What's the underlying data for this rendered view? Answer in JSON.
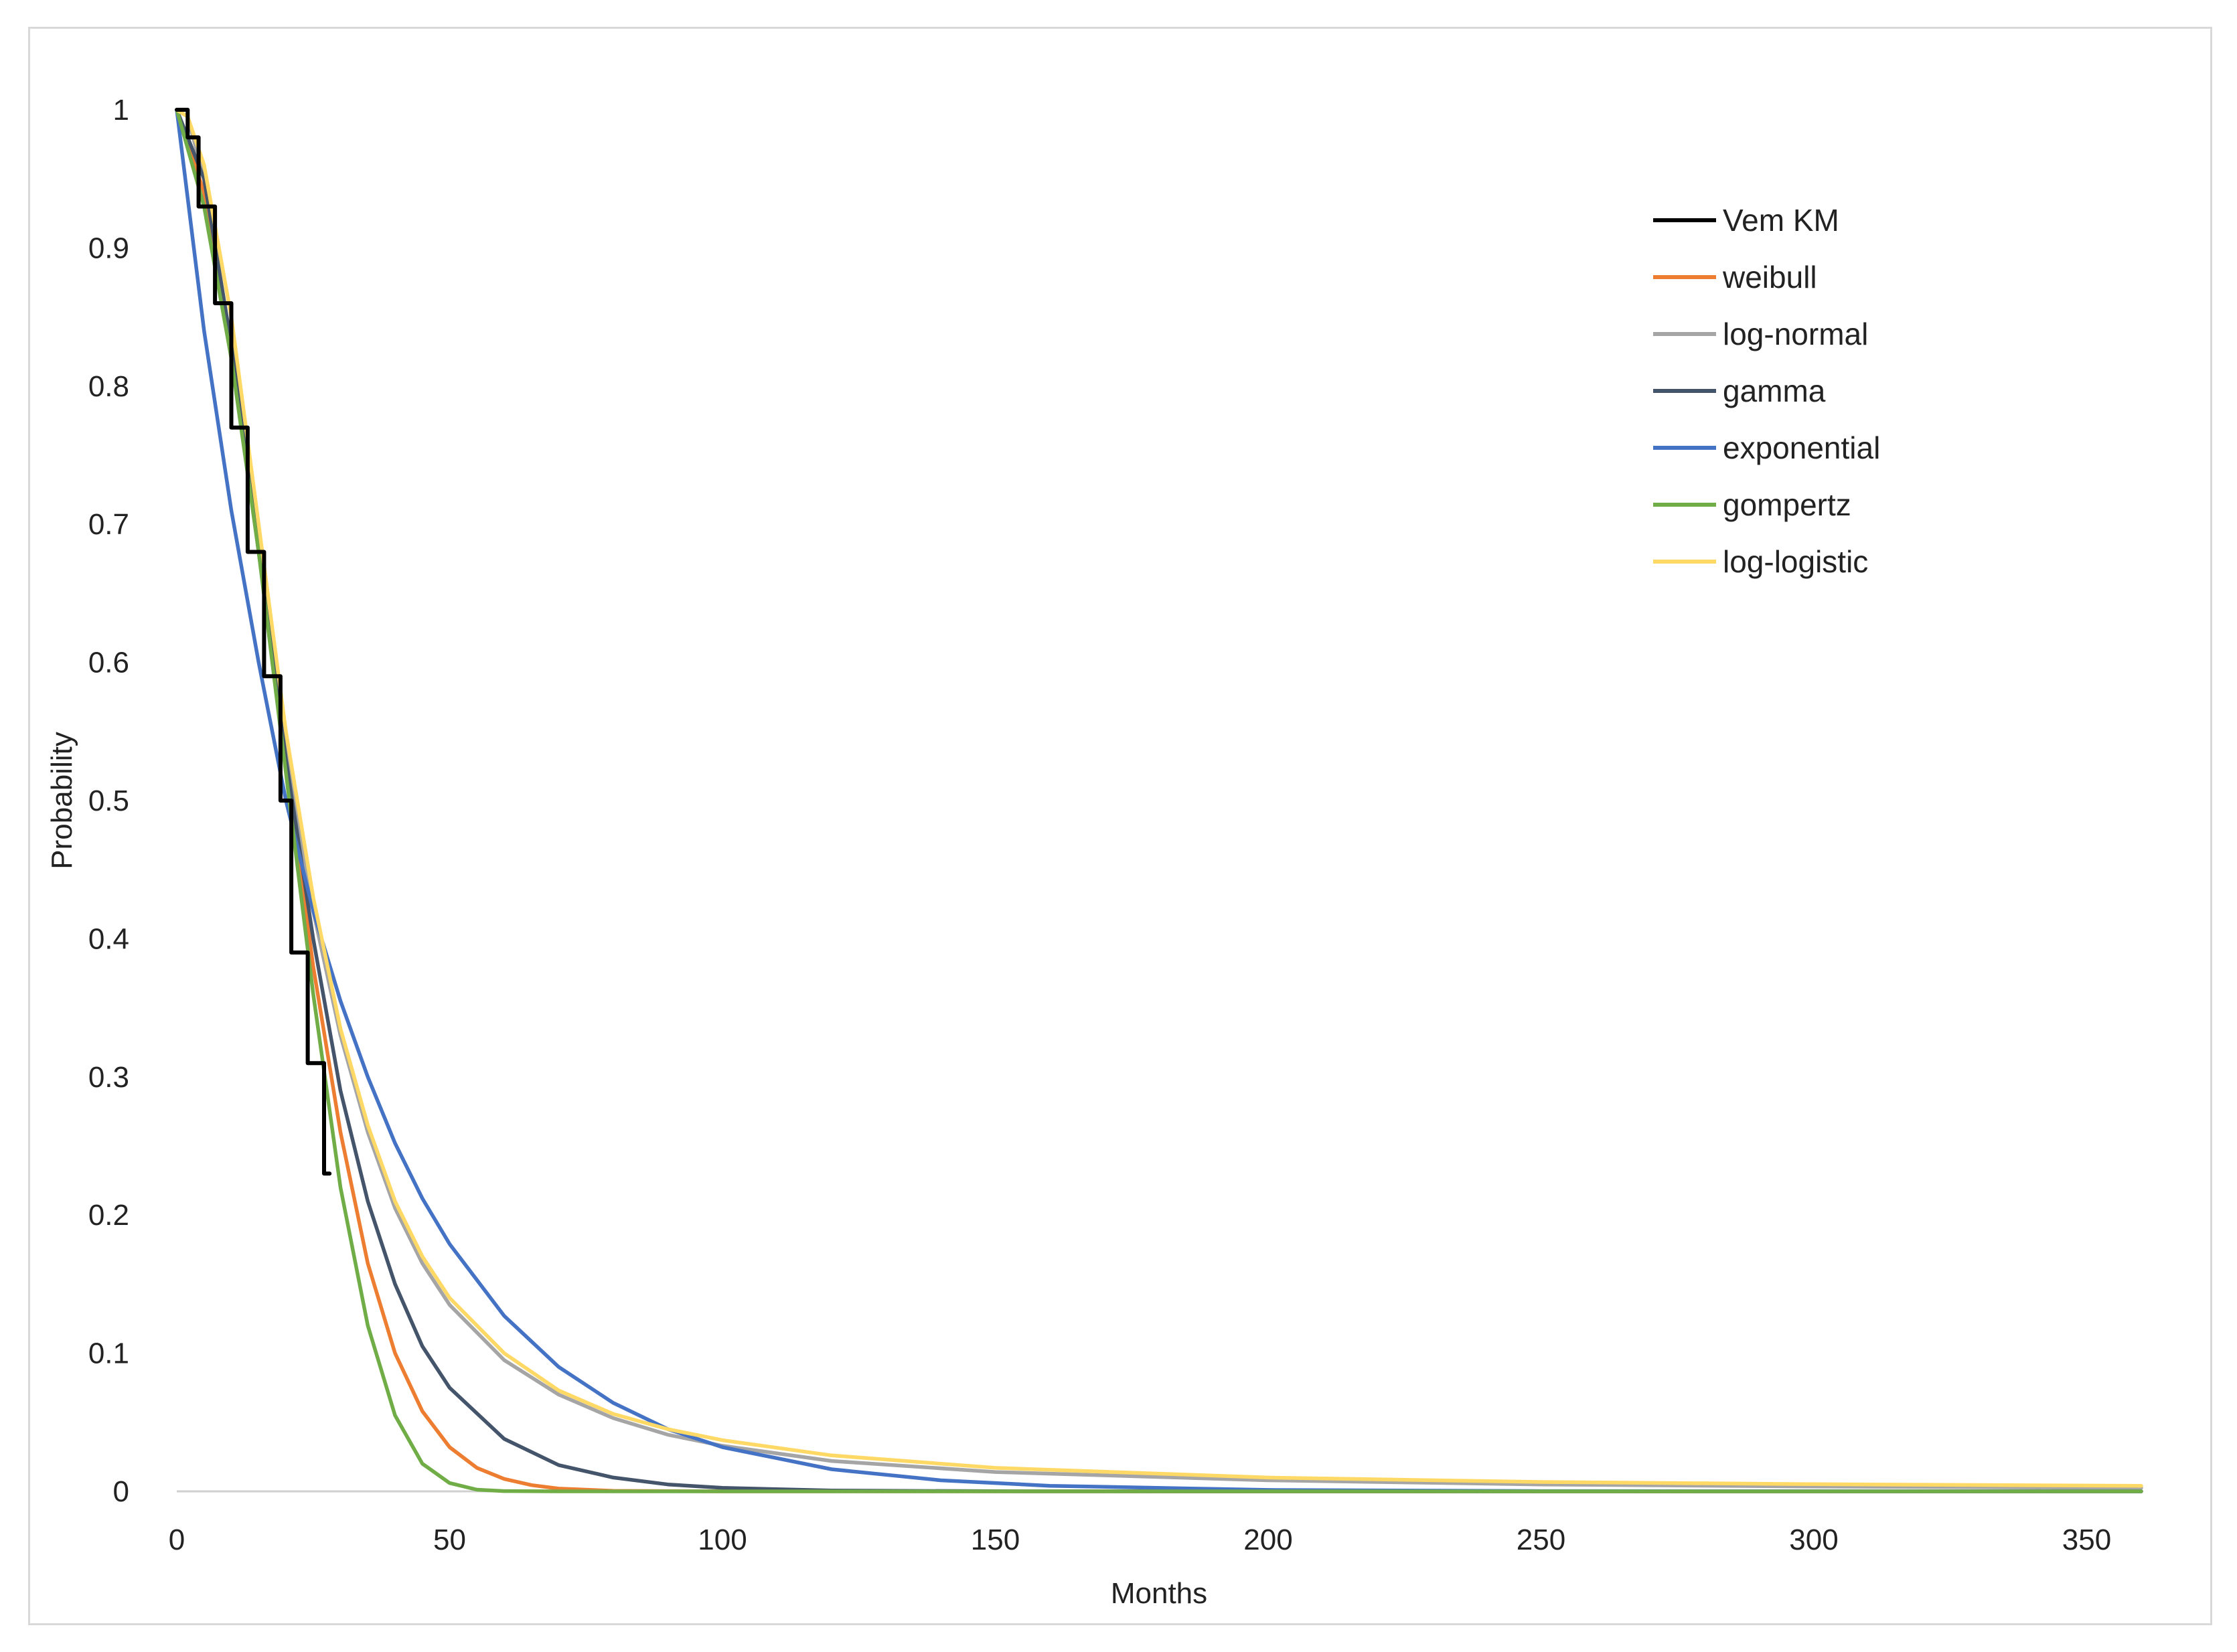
{
  "chart_data": {
    "type": "line",
    "title": "",
    "xlabel": "Months",
    "ylabel": "Probability",
    "xlim": [
      0,
      360
    ],
    "ylim": [
      0,
      1
    ],
    "xticks": [
      "0",
      "50",
      "100",
      "150",
      "200",
      "250",
      "300",
      "350"
    ],
    "yticks": [
      "0",
      "0.1",
      "0.2",
      "0.3",
      "0.4",
      "0.5",
      "0.6",
      "0.7",
      "0.8",
      "0.9",
      "1"
    ],
    "grid": false,
    "legend_position": "top-right",
    "series": [
      {
        "name": "Vem KM",
        "color": "#000000",
        "step": true,
        "points": [
          [
            0,
            1
          ],
          [
            2,
            1
          ],
          [
            2,
            0.98
          ],
          [
            4,
            0.98
          ],
          [
            4,
            0.93
          ],
          [
            7,
            0.93
          ],
          [
            7,
            0.86
          ],
          [
            10,
            0.86
          ],
          [
            10,
            0.77
          ],
          [
            13,
            0.77
          ],
          [
            13,
            0.68
          ],
          [
            16,
            0.68
          ],
          [
            16,
            0.59
          ],
          [
            19,
            0.59
          ],
          [
            19,
            0.5
          ],
          [
            21,
            0.5
          ],
          [
            21,
            0.39
          ],
          [
            24,
            0.39
          ],
          [
            24,
            0.31
          ],
          [
            27,
            0.31
          ],
          [
            27,
            0.23
          ],
          [
            28,
            0.23
          ]
        ]
      },
      {
        "name": "weibull",
        "color": "#ed7d31",
        "points": [
          [
            0,
            1
          ],
          [
            5,
            0.94
          ],
          [
            10,
            0.83
          ],
          [
            15,
            0.69
          ],
          [
            20,
            0.53
          ],
          [
            25,
            0.38
          ],
          [
            30,
            0.26
          ],
          [
            35,
            0.165
          ],
          [
            40,
            0.1
          ],
          [
            45,
            0.058
          ],
          [
            50,
            0.032
          ],
          [
            55,
            0.017
          ],
          [
            60,
            0.009
          ],
          [
            65,
            0.0045
          ],
          [
            70,
            0.002
          ],
          [
            80,
            0.0004
          ],
          [
            100,
            0
          ],
          [
            360,
            0
          ]
        ]
      },
      {
        "name": "log-normal",
        "color": "#a5a5a5",
        "points": [
          [
            0,
            1
          ],
          [
            2,
            0.995
          ],
          [
            5,
            0.95
          ],
          [
            10,
            0.83
          ],
          [
            15,
            0.68
          ],
          [
            20,
            0.54
          ],
          [
            25,
            0.42
          ],
          [
            30,
            0.33
          ],
          [
            35,
            0.26
          ],
          [
            40,
            0.205
          ],
          [
            45,
            0.165
          ],
          [
            50,
            0.135
          ],
          [
            60,
            0.095
          ],
          [
            70,
            0.07
          ],
          [
            80,
            0.053
          ],
          [
            90,
            0.041
          ],
          [
            100,
            0.033
          ],
          [
            120,
            0.022
          ],
          [
            150,
            0.014
          ],
          [
            200,
            0.008
          ],
          [
            250,
            0.005
          ],
          [
            300,
            0.0035
          ],
          [
            360,
            0.0025
          ]
        ]
      },
      {
        "name": "gamma",
        "color": "#44546a",
        "points": [
          [
            0,
            1
          ],
          [
            5,
            0.95
          ],
          [
            10,
            0.83
          ],
          [
            15,
            0.68
          ],
          [
            20,
            0.53
          ],
          [
            25,
            0.4
          ],
          [
            30,
            0.29
          ],
          [
            35,
            0.21
          ],
          [
            40,
            0.15
          ],
          [
            45,
            0.105
          ],
          [
            50,
            0.075
          ],
          [
            60,
            0.038
          ],
          [
            70,
            0.019
          ],
          [
            80,
            0.01
          ],
          [
            90,
            0.005
          ],
          [
            100,
            0.0025
          ],
          [
            120,
            0.0006
          ],
          [
            150,
            0.0001
          ],
          [
            200,
            0
          ],
          [
            360,
            0
          ]
        ]
      },
      {
        "name": "exponential",
        "color": "#4472c4",
        "points": [
          [
            0,
            1
          ],
          [
            5,
            0.84
          ],
          [
            10,
            0.71
          ],
          [
            15,
            0.6
          ],
          [
            20,
            0.5
          ],
          [
            25,
            0.42
          ],
          [
            30,
            0.355
          ],
          [
            35,
            0.3
          ],
          [
            40,
            0.252
          ],
          [
            45,
            0.212
          ],
          [
            50,
            0.179
          ],
          [
            60,
            0.127
          ],
          [
            70,
            0.09
          ],
          [
            80,
            0.064
          ],
          [
            90,
            0.045
          ],
          [
            100,
            0.032
          ],
          [
            120,
            0.016
          ],
          [
            140,
            0.008
          ],
          [
            160,
            0.004
          ],
          [
            200,
            0.001
          ],
          [
            250,
            0.0002
          ],
          [
            360,
            0
          ]
        ]
      },
      {
        "name": "gompertz",
        "color": "#70ad47",
        "points": [
          [
            0,
            1
          ],
          [
            5,
            0.93
          ],
          [
            10,
            0.82
          ],
          [
            15,
            0.68
          ],
          [
            20,
            0.52
          ],
          [
            25,
            0.36
          ],
          [
            30,
            0.22
          ],
          [
            35,
            0.12
          ],
          [
            40,
            0.055
          ],
          [
            45,
            0.02
          ],
          [
            50,
            0.006
          ],
          [
            55,
            0.0012
          ],
          [
            60,
            0.0002
          ],
          [
            70,
            0
          ],
          [
            360,
            0
          ]
        ]
      },
      {
        "name": "log-logistic",
        "color": "#ffd966",
        "points": [
          [
            0,
            1
          ],
          [
            2,
            0.995
          ],
          [
            5,
            0.96
          ],
          [
            10,
            0.85
          ],
          [
            15,
            0.7
          ],
          [
            20,
            0.55
          ],
          [
            25,
            0.43
          ],
          [
            30,
            0.335
          ],
          [
            35,
            0.265
          ],
          [
            40,
            0.21
          ],
          [
            45,
            0.17
          ],
          [
            50,
            0.14
          ],
          [
            60,
            0.1
          ],
          [
            70,
            0.073
          ],
          [
            80,
            0.056
          ],
          [
            90,
            0.045
          ],
          [
            100,
            0.037
          ],
          [
            120,
            0.026
          ],
          [
            150,
            0.017
          ],
          [
            200,
            0.01
          ],
          [
            250,
            0.0068
          ],
          [
            300,
            0.0052
          ],
          [
            360,
            0.004
          ]
        ]
      }
    ]
  }
}
